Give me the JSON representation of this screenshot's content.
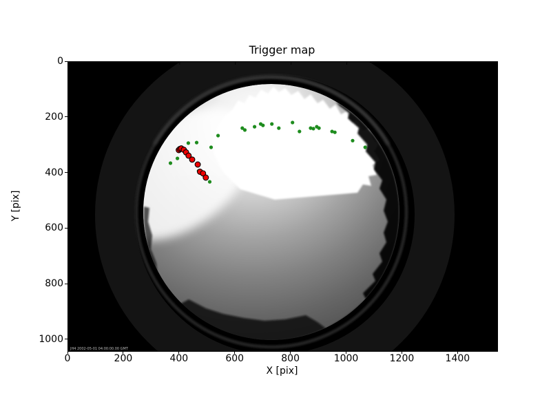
{
  "figure": {
    "title": "Trigger map",
    "xlabel": "X [pix]",
    "ylabel": "Y [pix]",
    "watermark": "JH4 2002-05-01 04:00:00.00 GMT"
  },
  "chart_data": {
    "type": "scatter",
    "title": "Trigger map",
    "xlabel": "X [pix]",
    "ylabel": "Y [pix]",
    "xlim": [
      0,
      1540
    ],
    "ylim": [
      1040,
      0
    ],
    "x_ticks": [
      0,
      200,
      400,
      600,
      800,
      1000,
      1200,
      1400
    ],
    "y_ticks": [
      0,
      200,
      400,
      600,
      800,
      1000
    ],
    "grid": false,
    "legend": "none",
    "background_description": "grayscale all-sky fisheye camera image: black frame, faint lens ring, bright overexposed sky at top of circular field, gray gradient sky, dark tree-line silhouette along right and bottom rim",
    "series": [
      {
        "name": "triggered-pixels",
        "marker": "dot",
        "color": "#1e8c1e",
        "marker_px": 2.6,
        "points": [
          [
            367,
            364
          ],
          [
            392,
            347
          ],
          [
            431,
            292
          ],
          [
            461,
            290
          ],
          [
            513,
            307
          ],
          [
            538,
            265
          ],
          [
            625,
            238
          ],
          [
            634,
            245
          ],
          [
            669,
            233
          ],
          [
            691,
            223
          ],
          [
            699,
            228
          ],
          [
            731,
            223
          ],
          [
            756,
            238
          ],
          [
            805,
            218
          ],
          [
            830,
            250
          ],
          [
            870,
            238
          ],
          [
            880,
            240
          ],
          [
            892,
            233
          ],
          [
            900,
            238
          ],
          [
            947,
            250
          ],
          [
            957,
            253
          ],
          [
            1021,
            283
          ],
          [
            1066,
            307
          ],
          [
            468,
            392
          ],
          [
            508,
            431
          ]
        ]
      },
      {
        "name": "trigger-track",
        "marker": "circle",
        "color": "#ee0000",
        "edge_color": "#000000",
        "marker_px": 3.9,
        "points": [
          [
            397,
            317
          ],
          [
            401,
            313
          ],
          [
            406,
            311
          ],
          [
            415,
            316
          ],
          [
            423,
            325
          ],
          [
            432,
            337
          ],
          [
            445,
            351
          ],
          [
            465,
            369
          ],
          [
            473,
            395
          ],
          [
            484,
            401
          ],
          [
            494,
            416
          ]
        ]
      }
    ]
  }
}
